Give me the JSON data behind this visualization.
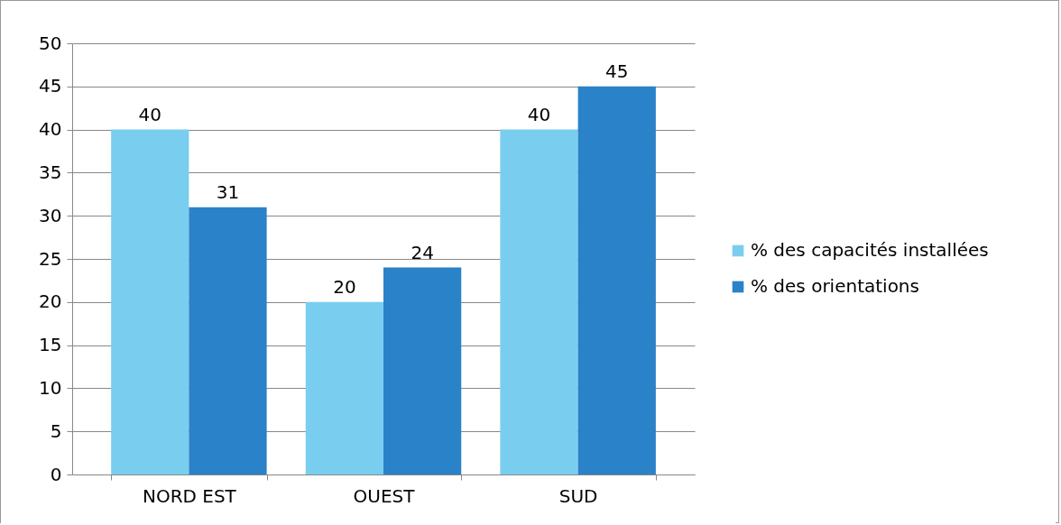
{
  "chart_data": {
    "type": "bar",
    "categories": [
      "NORD EST",
      "OUEST",
      "SUD"
    ],
    "series": [
      {
        "name": "% des capacités installées",
        "color": "#79cef0",
        "values": [
          40,
          20,
          40
        ]
      },
      {
        "name": "% des orientations",
        "color": "#2a82c8",
        "values": [
          31,
          24,
          45
        ]
      }
    ],
    "ylim": [
      0,
      50
    ],
    "yticks": [
      0,
      5,
      10,
      15,
      20,
      25,
      30,
      35,
      40,
      45,
      50
    ],
    "grid": "y",
    "legend": "right",
    "data_labels": true
  }
}
